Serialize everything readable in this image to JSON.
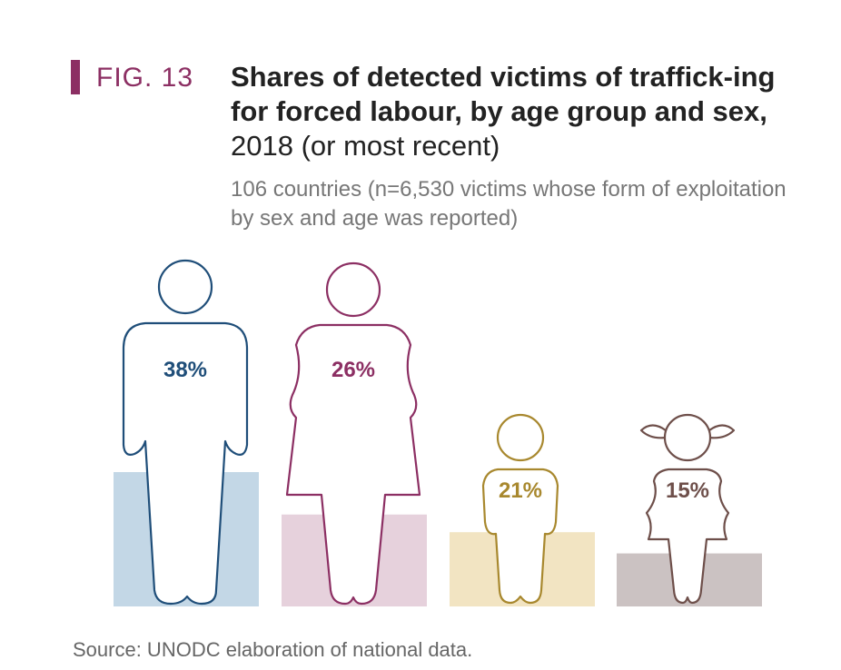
{
  "figure": {
    "label": "FIG. 13",
    "title_bold": "Shares of detected victims of traffick-ing for forced labour, by age group and sex,",
    "title_regular": " 2018 (or most recent)",
    "subtitle": "106 countries (n=6,530 victims whose form of exploitation by sex and age was reported)",
    "source": "Source: UNODC elaboration of national data."
  },
  "chart_data": {
    "type": "bar",
    "categories": [
      "Men",
      "Women",
      "Boys",
      "Girls"
    ],
    "values": [
      38,
      26,
      21,
      15
    ],
    "value_labels": [
      "38%",
      "26%",
      "21%",
      "15%"
    ],
    "unit": "%",
    "title": "Shares of detected victims of trafficking for forced labour, by age group and sex, 2018 (or most recent)",
    "subtitle": "106 countries (n=6,530 victims whose form of exploitation by sex and age was reported)",
    "ylim": [
      0,
      60
    ],
    "grid": false,
    "colors": {
      "men": {
        "bar": "#c3d7e6",
        "stroke": "#1f4e79"
      },
      "women": {
        "bar": "#e6d1dc",
        "stroke": "#8c2f63"
      },
      "boys": {
        "bar": "#f2e4c2",
        "stroke": "#a8882e"
      },
      "girls": {
        "bar": "#cbc2c2",
        "stroke": "#6e4f4a"
      }
    }
  }
}
